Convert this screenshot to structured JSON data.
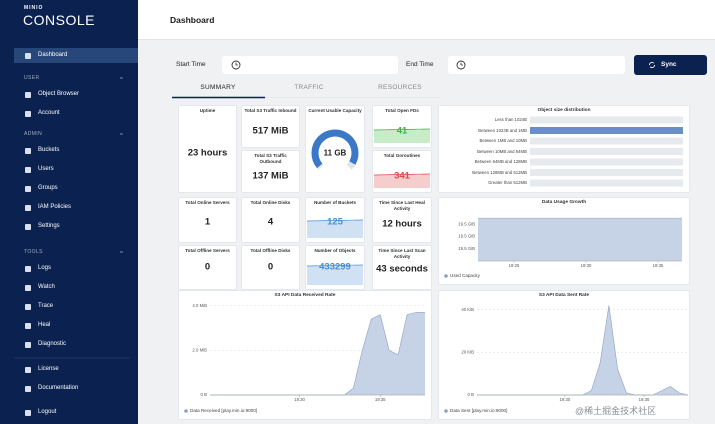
{
  "sidebar": {
    "brand": "MINIO",
    "product": "CONSOLE",
    "top": [
      "Dashboard"
    ],
    "sections": [
      {
        "title": "USER",
        "items": [
          "Object Browser",
          "Account"
        ]
      },
      {
        "title": "ADMIN",
        "items": [
          "Buckets",
          "Users",
          "Groups",
          "IAM Policies",
          "Settings"
        ]
      },
      {
        "title": "TOOLS",
        "items": [
          "Logs",
          "Watch",
          "Trace",
          "Heal",
          "Diagnostic"
        ]
      }
    ],
    "bottom": [
      "License",
      "Documentation",
      "Logout"
    ]
  },
  "header": {
    "title": "Dashboard"
  },
  "filters": {
    "start_label": "Start Time",
    "end_label": "End Time",
    "button": "Sync"
  },
  "tabs": [
    "SUMMARY",
    "TRAFFIC",
    "RESOURCES"
  ],
  "cards": [
    {
      "title": "Uptime",
      "value": "23 hours"
    },
    {
      "title": "Total S3 Traffic Inbound",
      "value": "517 MiB"
    },
    {
      "title": "Total S3 Traffic Outbound",
      "value": "137 MiB"
    },
    {
      "title": "Current Usable Capacity",
      "value": "11 GB"
    },
    {
      "title": "Total Open FDs",
      "value": "41"
    },
    {
      "title": "Total Goroutines",
      "value": "341"
    },
    {
      "title": "Total Online Servers",
      "value": "1"
    },
    {
      "title": "Total Online Disks",
      "value": "4"
    },
    {
      "title": "Number of Buckets",
      "value": "125"
    },
    {
      "title": "Time Since Last Heal Activity",
      "value": "12 hours"
    },
    {
      "title": "Total Offline Servers",
      "value": "0"
    },
    {
      "title": "Total Offline Disks",
      "value": "0"
    },
    {
      "title": "Number of Objects",
      "value": "433299"
    },
    {
      "title": "Time Since Last Scan Activity",
      "value": "43 seconds"
    }
  ],
  "object_size": {
    "title": "Object size distribution",
    "categories": [
      "Less than 1024B",
      "Between 1024B and 1MB",
      "Between 1MB and 10MB",
      "Between 10MB and 64MB",
      "Between 64MB and 128MB",
      "Between 128MB and 512MB",
      "Greater than 512MB"
    ],
    "values": [
      0,
      1,
      0,
      0,
      0,
      0,
      0
    ],
    "color": "#6a8ec6"
  },
  "usage": {
    "title": "Data Usage Growth",
    "ylim": [
      19.46,
      19.54
    ],
    "yticks": [
      {
        "value": 19.48,
        "label": "19.5 GiB"
      },
      {
        "value": 19.5,
        "label": "19.5 GiB"
      },
      {
        "value": 19.52,
        "label": "19.5 GiB"
      }
    ],
    "xticks": [
      {
        "value": 3,
        "label": "19:25"
      },
      {
        "value": 9,
        "label": "19:30"
      },
      {
        "value": 15,
        "label": "19:35"
      }
    ],
    "values": [
      19.53,
      19.53,
      19.53,
      19.53,
      19.53,
      19.53,
      19.53,
      19.53,
      19.53,
      19.53,
      19.53,
      19.53,
      19.53,
      19.53,
      19.53,
      19.53,
      19.53,
      19.53
    ],
    "legend": "Used Capacity",
    "color": "#c6d3e6"
  },
  "received": {
    "title": "S3 API Data Received Rate",
    "ylim": [
      0,
      4.3
    ],
    "yticks": [
      {
        "value": 0,
        "label": "0 B"
      },
      {
        "value": 2,
        "label": "2.0 MiB"
      },
      {
        "value": 4,
        "label": "4.0 MiB"
      }
    ],
    "xticks": [
      {
        "value": 10,
        "label": "19:30"
      },
      {
        "value": 19,
        "label": "19:35"
      }
    ],
    "values": [
      0,
      0,
      0,
      0,
      0,
      0,
      0,
      0,
      0,
      0,
      0,
      0,
      0,
      0,
      0,
      0,
      0.3,
      2.0,
      3.4,
      3.6,
      2.0,
      1.8,
      3.6,
      3.7,
      3.7
    ],
    "legend": "Data Received [play.min.io:9000]",
    "color": "#c6d3e6"
  },
  "sent": {
    "title": "S3 API Data Sent Rate",
    "ylim": [
      0,
      45
    ],
    "yticks": [
      {
        "value": 0,
        "label": "0 B"
      },
      {
        "value": 20,
        "label": "20 KiB"
      },
      {
        "value": 40,
        "label": "40 KiB"
      }
    ],
    "xticks": [
      {
        "value": 10,
        "label": "19:30"
      },
      {
        "value": 19,
        "label": "19:35"
      }
    ],
    "values": [
      0,
      0,
      0,
      0,
      0,
      0,
      0,
      0,
      0,
      0,
      0,
      0,
      0,
      2,
      15,
      42,
      12,
      1,
      0,
      0,
      0,
      2,
      4,
      1,
      0
    ],
    "legend": "Data Sent [play.min.io:9000]",
    "color": "#c6d3e6"
  },
  "watermark": "@稀土掘金技术社区"
}
